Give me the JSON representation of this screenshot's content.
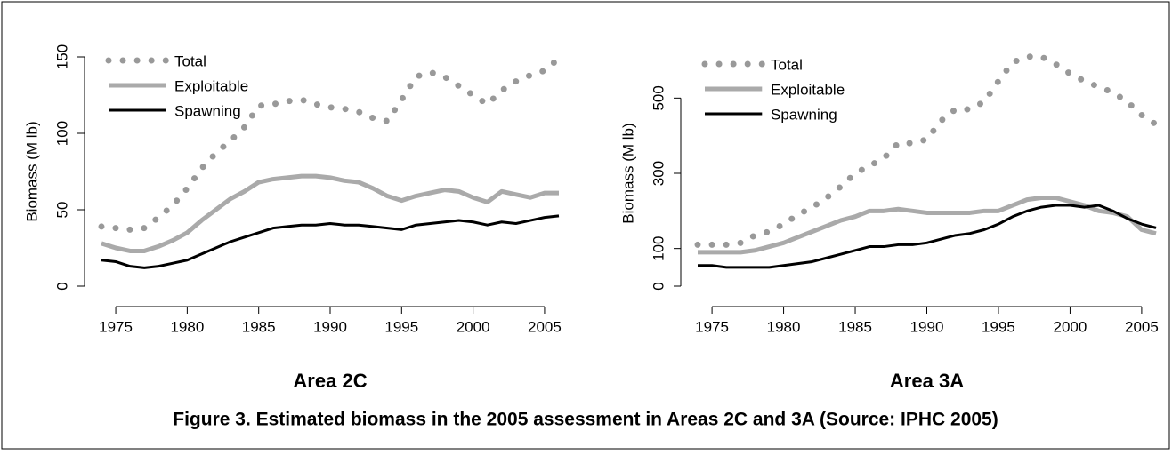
{
  "caption": "Figure 3. Estimated biomass in the 2005 assessment in Areas 2C and 3A (Source: IPHC 2005)",
  "chart_data": [
    {
      "type": "line",
      "title": "Area 2C",
      "ylabel": "Biomass (M lb)",
      "x": [
        1974,
        1975,
        1976,
        1977,
        1978,
        1979,
        1980,
        1981,
        1982,
        1983,
        1984,
        1985,
        1986,
        1987,
        1988,
        1989,
        1990,
        1991,
        1992,
        1993,
        1994,
        1995,
        1996,
        1997,
        1998,
        1999,
        2000,
        2001,
        2002,
        2003,
        2004,
        2005,
        2006
      ],
      "xlim": [
        1974,
        2006
      ],
      "xticks": [
        1975,
        1980,
        1985,
        1990,
        1995,
        2000,
        2005
      ],
      "ylim": [
        0,
        150
      ],
      "yticks": [
        0,
        50,
        100,
        150
      ],
      "legend": "top-left",
      "series": [
        {
          "name": "Total",
          "color": "#999999",
          "style": "dotted",
          "values": [
            39,
            38,
            37,
            38,
            45,
            53,
            64,
            77,
            87,
            95,
            104,
            118,
            119,
            121,
            122,
            119,
            117,
            116,
            114,
            110,
            108,
            122,
            137,
            140,
            137,
            131,
            125,
            119,
            128,
            134,
            138,
            141,
            149
          ]
        },
        {
          "name": "Exploitable",
          "color": "#aaaaaa",
          "style": "thick",
          "values": [
            28,
            25,
            23,
            23,
            26,
            30,
            35,
            43,
            50,
            57,
            62,
            68,
            70,
            71,
            72,
            72,
            71,
            69,
            68,
            64,
            59,
            56,
            59,
            61,
            63,
            62,
            58,
            55,
            62,
            60,
            58,
            61,
            61
          ]
        },
        {
          "name": "Spawning",
          "color": "#000000",
          "style": "solid",
          "values": [
            17,
            16,
            13,
            12,
            13,
            15,
            17,
            21,
            25,
            29,
            32,
            35,
            38,
            39,
            40,
            40,
            41,
            40,
            40,
            39,
            38,
            37,
            40,
            41,
            42,
            43,
            42,
            40,
            42,
            41,
            43,
            45,
            46
          ]
        }
      ]
    },
    {
      "type": "line",
      "title": "Area 3A",
      "ylabel": "Biomass (M lb)",
      "x": [
        1974,
        1975,
        1976,
        1977,
        1978,
        1979,
        1980,
        1981,
        1982,
        1983,
        1984,
        1985,
        1986,
        1987,
        1988,
        1989,
        1990,
        1991,
        1992,
        1993,
        1994,
        1995,
        1996,
        1997,
        1998,
        1999,
        2000,
        2001,
        2002,
        2003,
        2004,
        2005,
        2006
      ],
      "xlim": [
        1974,
        2006
      ],
      "xticks": [
        1975,
        1980,
        1985,
        1990,
        1995,
        2000,
        2005
      ],
      "ylim": [
        0,
        600
      ],
      "yticks": [
        0,
        100,
        300,
        500
      ],
      "legend": "top-left",
      "series": [
        {
          "name": "Total",
          "color": "#999999",
          "style": "dotted",
          "values": [
            110,
            110,
            110,
            115,
            135,
            145,
            165,
            190,
            210,
            235,
            265,
            300,
            320,
            340,
            380,
            380,
            390,
            440,
            470,
            470,
            490,
            545,
            595,
            610,
            610,
            590,
            565,
            545,
            530,
            515,
            490,
            455,
            430
          ]
        },
        {
          "name": "Exploitable",
          "color": "#aaaaaa",
          "style": "thick",
          "values": [
            90,
            90,
            90,
            90,
            95,
            105,
            115,
            130,
            145,
            160,
            175,
            185,
            200,
            200,
            205,
            200,
            195,
            195,
            195,
            195,
            200,
            200,
            215,
            230,
            235,
            235,
            225,
            215,
            200,
            195,
            185,
            150,
            140
          ]
        },
        {
          "name": "Spawning",
          "color": "#000000",
          "style": "solid",
          "values": [
            55,
            55,
            50,
            50,
            50,
            50,
            55,
            60,
            65,
            75,
            85,
            95,
            105,
            105,
            110,
            110,
            115,
            125,
            135,
            140,
            150,
            165,
            185,
            200,
            210,
            215,
            215,
            210,
            215,
            200,
            180,
            165,
            155
          ]
        }
      ]
    }
  ]
}
